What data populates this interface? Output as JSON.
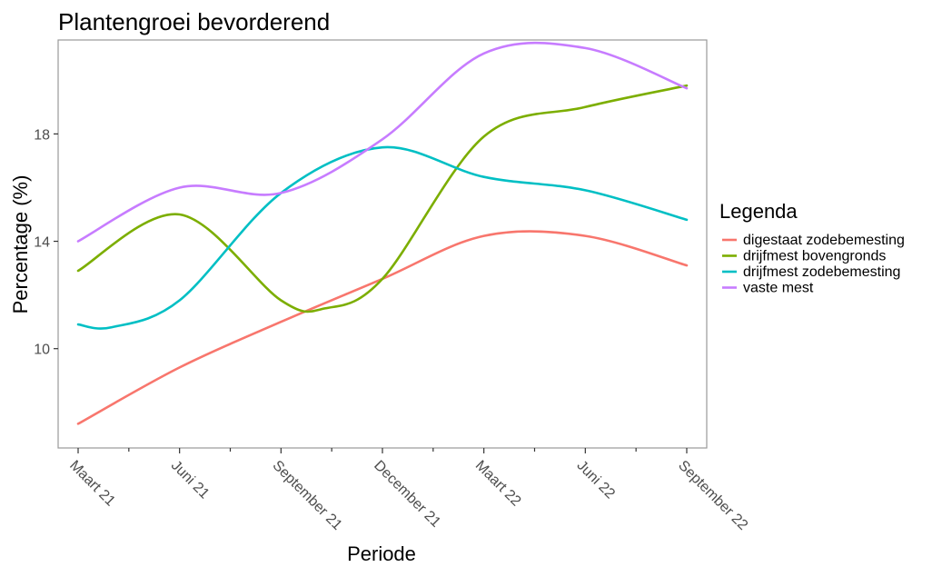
{
  "chart_data": {
    "type": "line",
    "title": "Plantengroei bevorderend",
    "xlabel": "Periode",
    "ylabel": "Percentage (%)",
    "categories": [
      "Maart 21",
      "Juni 21",
      "September 21",
      "December 21",
      "Maart 22",
      "Juni 22",
      "September 22"
    ],
    "x": [
      0,
      3,
      6,
      9,
      12,
      15,
      18
    ],
    "ylim": [
      6.3,
      21.5
    ],
    "yticks": [
      10,
      14,
      18
    ],
    "grid": false,
    "legend": {
      "title": "Legenda",
      "placement": "right"
    },
    "series": [
      {
        "name": "digestaat zodebemesting",
        "color": "#F8766D",
        "x": [
          0,
          3,
          6,
          9,
          12,
          15,
          18
        ],
        "values": [
          7.2,
          9.3,
          11.0,
          12.6,
          14.2,
          14.2,
          13.1
        ]
      },
      {
        "name": "drijfmest bovengronds",
        "color": "#7CAE00",
        "x": [
          0,
          3,
          6,
          7.3,
          9,
          12,
          15,
          18
        ],
        "values": [
          12.9,
          15.0,
          11.8,
          11.5,
          12.6,
          17.9,
          19.0,
          19.8
        ]
      },
      {
        "name": "drijfmest zodebemesting",
        "color": "#00BFC4",
        "x": [
          0,
          1,
          3,
          6,
          9,
          12,
          15,
          18
        ],
        "values": [
          10.9,
          10.8,
          11.8,
          15.8,
          17.5,
          16.4,
          15.9,
          14.8
        ]
      },
      {
        "name": "vaste mest",
        "color": "#C77CFF",
        "x": [
          0,
          3,
          6,
          9,
          12,
          15,
          18
        ],
        "values": [
          14.0,
          16.0,
          15.8,
          17.8,
          21.0,
          21.2,
          19.7
        ]
      }
    ]
  }
}
